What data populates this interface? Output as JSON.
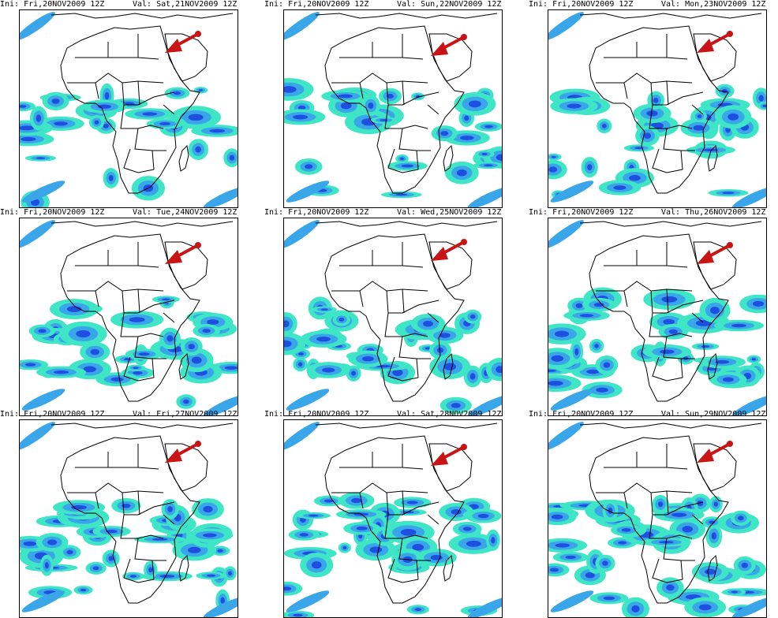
{
  "colors": {
    "light_rain": "#3fe6c6",
    "moderate_rain": "#3aa6ea",
    "heavy_rain": "#1f4fe0",
    "extreme_rain": "#a020f0",
    "arrow": "#c81414",
    "coastline": "#000000"
  },
  "arrow_icon": "red-arrow-pointing-southwest",
  "panels": [
    {
      "ini": "Ini: Fri,20NOV2009 12Z",
      "val": "Val: Sat,21NOV2009 12Z"
    },
    {
      "ini": "Ini: Fri,20NOV2009 12Z",
      "val": "Val: Sun,22NOV2009 12Z"
    },
    {
      "ini": "Ini: Fri,20NOV2009 12Z",
      "val": "Val: Mon,23NOV2009 12Z"
    },
    {
      "ini": "Ini: Fri,20NOV2009 12Z",
      "val": "Val: Tue,24NOV2009 12Z"
    },
    {
      "ini": "Ini: Fri,20NOV2009 12Z",
      "val": "Val: Wed,25NOV2009 12Z"
    },
    {
      "ini": "Ini: Fri,20NOV2009 12Z",
      "val": "Val: Thu,26NOV2009 12Z"
    },
    {
      "ini": "Ini: Fri,20NOV2009 12Z",
      "val": "Val: Fri,27NOV2009 12Z"
    },
    {
      "ini": "Ini: Fri,20NOV2009 12Z",
      "val": "Val: Sat,28NOV2009 12Z"
    },
    {
      "ini": "Ini: Fri,20NOV2009 12Z",
      "val": "Val: Sun,29NOV2009 12Z"
    }
  ]
}
